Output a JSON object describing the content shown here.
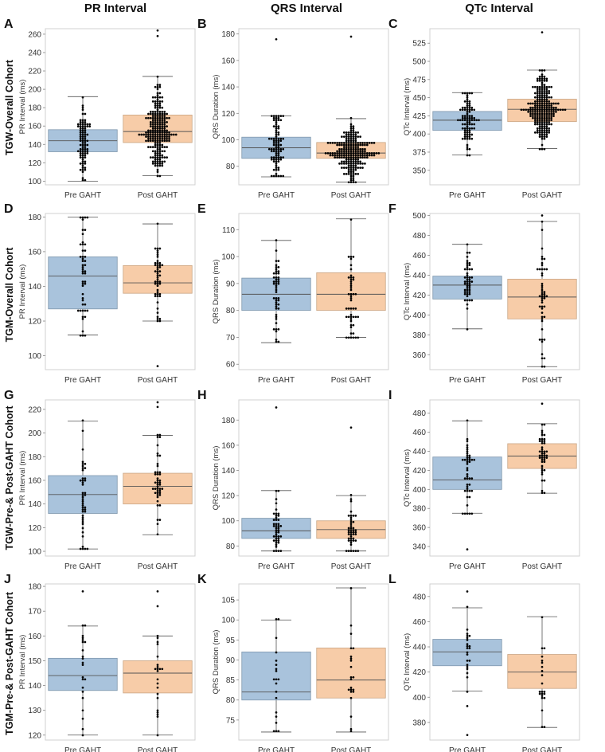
{
  "figure": {
    "column_titles": [
      "PR Interval",
      "QRS Interval",
      "QTc Interval"
    ],
    "row_labels": [
      "TGW-Overall Cohort",
      "TGM-Overall Cohort",
      "TGW-Pre-& Post-GAHT Cohort",
      "TGM-Pre-& Post-GAHT Cohort"
    ],
    "colors": {
      "pre": "#a9c3dc",
      "post": "#f7cca8",
      "box_edge": "#7f97ad",
      "post_edge": "#c9a585",
      "median": "#555555",
      "point": "#000000"
    }
  },
  "chart_data": [
    {
      "panel": "A",
      "type": "box",
      "ylabel": "PR Interval (ms)",
      "ylim": [
        96,
        266
      ],
      "yticks": [
        100,
        120,
        140,
        160,
        180,
        200,
        220,
        240,
        260
      ],
      "categories": [
        "Pre GAHT",
        "Post GAHT"
      ],
      "groups": [
        {
          "name": "Pre GAHT",
          "whisker_low": 100,
          "q1": 132,
          "median": 144,
          "q3": 156,
          "whisker_high": 192,
          "outliers": [],
          "n": 90
        },
        {
          "name": "Post GAHT",
          "whisker_low": 106,
          "q1": 142,
          "median": 154,
          "q3": 172,
          "whisker_high": 214,
          "outliers": [
            258,
            264
          ],
          "n": 230
        }
      ]
    },
    {
      "panel": "B",
      "type": "box",
      "ylabel": "QRS Duration (ms)",
      "ylim": [
        66,
        184
      ],
      "yticks": [
        80,
        100,
        120,
        140,
        160,
        180
      ],
      "categories": [
        "Pre GAHT",
        "Post GAHT"
      ],
      "groups": [
        {
          "name": "Pre GAHT",
          "whisker_low": 72,
          "q1": 86,
          "median": 94,
          "q3": 102,
          "whisker_high": 118,
          "outliers": [
            176
          ],
          "n": 90
        },
        {
          "name": "Post GAHT",
          "whisker_low": 68,
          "q1": 86,
          "median": 90,
          "q3": 98,
          "whisker_high": 116,
          "outliers": [
            178
          ],
          "n": 230
        }
      ]
    },
    {
      "panel": "C",
      "type": "box",
      "ylabel": "QTc Interval (ms)",
      "ylim": [
        330,
        545
      ],
      "yticks": [
        350,
        375,
        400,
        425,
        450,
        475,
        500,
        525
      ],
      "categories": [
        "Pre GAHT",
        "Post GAHT"
      ],
      "groups": [
        {
          "name": "Pre GAHT",
          "whisker_low": 371,
          "q1": 405,
          "median": 419,
          "q3": 431,
          "whisker_high": 457,
          "outliers": [],
          "n": 90
        },
        {
          "name": "Post GAHT",
          "whisker_low": 380,
          "q1": 417,
          "median": 434,
          "q3": 448,
          "whisker_high": 488,
          "outliers": [
            540
          ],
          "n": 230
        }
      ]
    },
    {
      "panel": "D",
      "type": "box",
      "ylabel": "PR Interval (ms)",
      "ylim": [
        92,
        182
      ],
      "yticks": [
        100,
        120,
        140,
        160,
        180
      ],
      "categories": [
        "Pre GAHT",
        "Post GAHT"
      ],
      "groups": [
        {
          "name": "Pre GAHT",
          "whisker_low": 112,
          "q1": 127,
          "median": 146,
          "q3": 157,
          "whisker_high": 180,
          "outliers": [],
          "n": 50
        },
        {
          "name": "Post GAHT",
          "whisker_low": 120,
          "q1": 136,
          "median": 142,
          "q3": 152,
          "whisker_high": 176,
          "outliers": [
            94
          ],
          "n": 50
        }
      ]
    },
    {
      "panel": "E",
      "type": "box",
      "ylabel": "QRS Duration (ms)",
      "ylim": [
        58,
        116
      ],
      "yticks": [
        60,
        70,
        80,
        90,
        100,
        110
      ],
      "categories": [
        "Pre GAHT",
        "Post GAHT"
      ],
      "groups": [
        {
          "name": "Pre GAHT",
          "whisker_low": 68,
          "q1": 80,
          "median": 86,
          "q3": 92,
          "whisker_high": 106,
          "outliers": [],
          "n": 50
        },
        {
          "name": "Post GAHT",
          "whisker_low": 70,
          "q1": 80,
          "median": 86,
          "q3": 94,
          "whisker_high": 114,
          "outliers": [],
          "n": 50
        }
      ]
    },
    {
      "panel": "F",
      "type": "box",
      "ylabel": "QTc Interval (ms)",
      "ylim": [
        345,
        502
      ],
      "yticks": [
        360,
        380,
        400,
        420,
        440,
        460,
        480,
        500
      ],
      "categories": [
        "Pre GAHT",
        "Post GAHT"
      ],
      "groups": [
        {
          "name": "Pre GAHT",
          "whisker_low": 386,
          "q1": 416,
          "median": 430,
          "q3": 439,
          "whisker_high": 471,
          "outliers": [],
          "n": 50
        },
        {
          "name": "Post GAHT",
          "whisker_low": 348,
          "q1": 396,
          "median": 418,
          "q3": 436,
          "whisker_high": 494,
          "outliers": [
            500
          ],
          "n": 50
        }
      ]
    },
    {
      "panel": "G",
      "type": "box",
      "ylabel": "PR Interval (ms)",
      "ylim": [
        96,
        228
      ],
      "yticks": [
        100,
        120,
        140,
        160,
        180,
        200,
        220
      ],
      "categories": [
        "Pre GAHT",
        "Post GAHT"
      ],
      "groups": [
        {
          "name": "Pre GAHT",
          "whisker_low": 102,
          "q1": 132,
          "median": 148,
          "q3": 164,
          "whisker_high": 210,
          "outliers": [],
          "n": 45
        },
        {
          "name": "Post GAHT",
          "whisker_low": 114,
          "q1": 140,
          "median": 155,
          "q3": 166,
          "whisker_high": 198,
          "outliers": [
            222,
            226
          ],
          "n": 45
        }
      ]
    },
    {
      "panel": "H",
      "type": "box",
      "ylabel": "QRS Duration (ms)",
      "ylim": [
        72,
        196
      ],
      "yticks": [
        80,
        100,
        120,
        140,
        160,
        180
      ],
      "categories": [
        "Pre GAHT",
        "Post GAHT"
      ],
      "groups": [
        {
          "name": "Pre GAHT",
          "whisker_low": 76,
          "q1": 86,
          "median": 92,
          "q3": 102,
          "whisker_high": 124,
          "outliers": [
            190
          ],
          "n": 45
        },
        {
          "name": "Post GAHT",
          "whisker_low": 76,
          "q1": 86,
          "median": 93,
          "q3": 100,
          "whisker_high": 120,
          "outliers": [
            174
          ],
          "n": 45
        }
      ]
    },
    {
      "panel": "I",
      "type": "box",
      "ylabel": "QTc Interval (ms)",
      "ylim": [
        330,
        494
      ],
      "yticks": [
        340,
        360,
        380,
        400,
        420,
        440,
        460,
        480
      ],
      "categories": [
        "Pre GAHT",
        "Post GAHT"
      ],
      "groups": [
        {
          "name": "Pre GAHT",
          "whisker_low": 375,
          "q1": 400,
          "median": 410,
          "q3": 434,
          "whisker_high": 472,
          "outliers": [
            337
          ],
          "n": 45
        },
        {
          "name": "Post GAHT",
          "whisker_low": 396,
          "q1": 422,
          "median": 435,
          "q3": 448,
          "whisker_high": 469,
          "outliers": [
            490
          ],
          "n": 45
        }
      ]
    },
    {
      "panel": "J",
      "type": "box",
      "ylabel": "PR Interval (ms)",
      "ylim": [
        118,
        181
      ],
      "yticks": [
        120,
        130,
        140,
        150,
        160,
        170,
        180
      ],
      "categories": [
        "Pre GAHT",
        "Post GAHT"
      ],
      "groups": [
        {
          "name": "Pre GAHT",
          "whisker_low": 120,
          "q1": 138,
          "median": 144,
          "q3": 151,
          "whisker_high": 164,
          "outliers": [
            178
          ],
          "n": 22
        },
        {
          "name": "Post GAHT",
          "whisker_low": 120,
          "q1": 137,
          "median": 145,
          "q3": 150,
          "whisker_high": 160,
          "outliers": [
            178,
            172
          ],
          "n": 22
        }
      ]
    },
    {
      "panel": "K",
      "type": "box",
      "ylabel": "QRS Duration (ms)",
      "ylim": [
        70,
        109
      ],
      "yticks": [
        75,
        80,
        85,
        90,
        95,
        100,
        105
      ],
      "categories": [
        "Pre GAHT",
        "Post GAHT"
      ],
      "groups": [
        {
          "name": "Pre GAHT",
          "whisker_low": 72,
          "q1": 80,
          "median": 82,
          "q3": 92,
          "whisker_high": 100,
          "outliers": [],
          "n": 20
        },
        {
          "name": "Post GAHT",
          "whisker_low": 72,
          "q1": 80.5,
          "median": 85,
          "q3": 93,
          "whisker_high": 108,
          "outliers": [],
          "n": 22
        }
      ]
    },
    {
      "panel": "L",
      "type": "box",
      "ylabel": "QTc Interval (ms)",
      "ylim": [
        366,
        490
      ],
      "yticks": [
        380,
        400,
        420,
        440,
        460,
        480
      ],
      "categories": [
        "Pre GAHT",
        "Post GAHT"
      ],
      "groups": [
        {
          "name": "Pre GAHT",
          "whisker_low": 405,
          "q1": 425,
          "median": 436,
          "q3": 446,
          "whisker_high": 471,
          "outliers": [
            370,
            393,
            484
          ],
          "n": 22
        },
        {
          "name": "Post GAHT",
          "whisker_low": 376,
          "q1": 407,
          "median": 420,
          "q3": 434,
          "whisker_high": 464,
          "outliers": [],
          "n": 22
        }
      ]
    }
  ]
}
